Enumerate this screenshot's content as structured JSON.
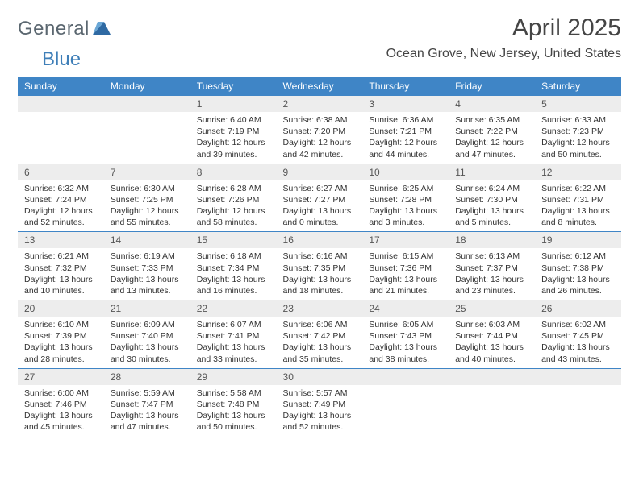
{
  "brand": {
    "word1": "General",
    "word2": "Blue",
    "tri_color": "#2f6aa3"
  },
  "header": {
    "title": "April 2025",
    "location": "Ocean Grove, New Jersey, United States"
  },
  "colors": {
    "header_bg": "#3f85c6",
    "row_stripe": "#ededed",
    "rule": "#3f85c6"
  },
  "weekdays": [
    "Sunday",
    "Monday",
    "Tuesday",
    "Wednesday",
    "Thursday",
    "Friday",
    "Saturday"
  ],
  "weeks": [
    [
      null,
      null,
      {
        "n": "1",
        "sr": "6:40 AM",
        "ss": "7:19 PM",
        "dl": "12 hours and 39 minutes."
      },
      {
        "n": "2",
        "sr": "6:38 AM",
        "ss": "7:20 PM",
        "dl": "12 hours and 42 minutes."
      },
      {
        "n": "3",
        "sr": "6:36 AM",
        "ss": "7:21 PM",
        "dl": "12 hours and 44 minutes."
      },
      {
        "n": "4",
        "sr": "6:35 AM",
        "ss": "7:22 PM",
        "dl": "12 hours and 47 minutes."
      },
      {
        "n": "5",
        "sr": "6:33 AM",
        "ss": "7:23 PM",
        "dl": "12 hours and 50 minutes."
      }
    ],
    [
      {
        "n": "6",
        "sr": "6:32 AM",
        "ss": "7:24 PM",
        "dl": "12 hours and 52 minutes."
      },
      {
        "n": "7",
        "sr": "6:30 AM",
        "ss": "7:25 PM",
        "dl": "12 hours and 55 minutes."
      },
      {
        "n": "8",
        "sr": "6:28 AM",
        "ss": "7:26 PM",
        "dl": "12 hours and 58 minutes."
      },
      {
        "n": "9",
        "sr": "6:27 AM",
        "ss": "7:27 PM",
        "dl": "13 hours and 0 minutes."
      },
      {
        "n": "10",
        "sr": "6:25 AM",
        "ss": "7:28 PM",
        "dl": "13 hours and 3 minutes."
      },
      {
        "n": "11",
        "sr": "6:24 AM",
        "ss": "7:30 PM",
        "dl": "13 hours and 5 minutes."
      },
      {
        "n": "12",
        "sr": "6:22 AM",
        "ss": "7:31 PM",
        "dl": "13 hours and 8 minutes."
      }
    ],
    [
      {
        "n": "13",
        "sr": "6:21 AM",
        "ss": "7:32 PM",
        "dl": "13 hours and 10 minutes."
      },
      {
        "n": "14",
        "sr": "6:19 AM",
        "ss": "7:33 PM",
        "dl": "13 hours and 13 minutes."
      },
      {
        "n": "15",
        "sr": "6:18 AM",
        "ss": "7:34 PM",
        "dl": "13 hours and 16 minutes."
      },
      {
        "n": "16",
        "sr": "6:16 AM",
        "ss": "7:35 PM",
        "dl": "13 hours and 18 minutes."
      },
      {
        "n": "17",
        "sr": "6:15 AM",
        "ss": "7:36 PM",
        "dl": "13 hours and 21 minutes."
      },
      {
        "n": "18",
        "sr": "6:13 AM",
        "ss": "7:37 PM",
        "dl": "13 hours and 23 minutes."
      },
      {
        "n": "19",
        "sr": "6:12 AM",
        "ss": "7:38 PM",
        "dl": "13 hours and 26 minutes."
      }
    ],
    [
      {
        "n": "20",
        "sr": "6:10 AM",
        "ss": "7:39 PM",
        "dl": "13 hours and 28 minutes."
      },
      {
        "n": "21",
        "sr": "6:09 AM",
        "ss": "7:40 PM",
        "dl": "13 hours and 30 minutes."
      },
      {
        "n": "22",
        "sr": "6:07 AM",
        "ss": "7:41 PM",
        "dl": "13 hours and 33 minutes."
      },
      {
        "n": "23",
        "sr": "6:06 AM",
        "ss": "7:42 PM",
        "dl": "13 hours and 35 minutes."
      },
      {
        "n": "24",
        "sr": "6:05 AM",
        "ss": "7:43 PM",
        "dl": "13 hours and 38 minutes."
      },
      {
        "n": "25",
        "sr": "6:03 AM",
        "ss": "7:44 PM",
        "dl": "13 hours and 40 minutes."
      },
      {
        "n": "26",
        "sr": "6:02 AM",
        "ss": "7:45 PM",
        "dl": "13 hours and 43 minutes."
      }
    ],
    [
      {
        "n": "27",
        "sr": "6:00 AM",
        "ss": "7:46 PM",
        "dl": "13 hours and 45 minutes."
      },
      {
        "n": "28",
        "sr": "5:59 AM",
        "ss": "7:47 PM",
        "dl": "13 hours and 47 minutes."
      },
      {
        "n": "29",
        "sr": "5:58 AM",
        "ss": "7:48 PM",
        "dl": "13 hours and 50 minutes."
      },
      {
        "n": "30",
        "sr": "5:57 AM",
        "ss": "7:49 PM",
        "dl": "13 hours and 52 minutes."
      },
      null,
      null,
      null
    ]
  ],
  "labels": {
    "sunrise": "Sunrise:",
    "sunset": "Sunset:",
    "daylight": "Daylight:"
  }
}
